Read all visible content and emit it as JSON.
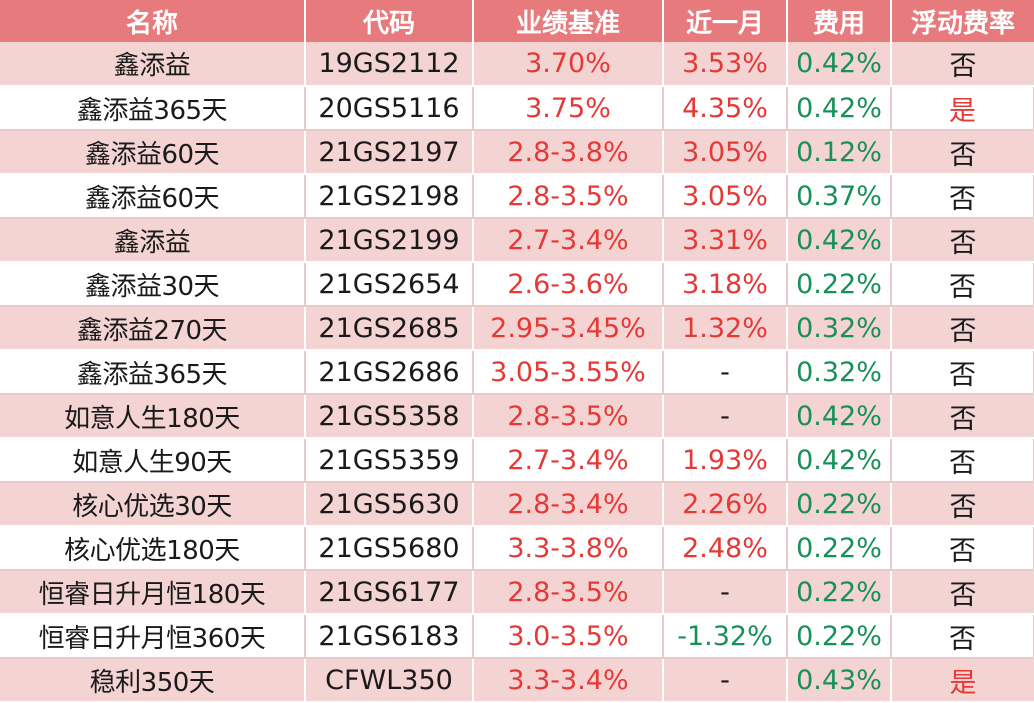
{
  "colors": {
    "header_bg": "#e77a7c",
    "row_alt": "#f4d3d3",
    "red": "#e53935",
    "green": "#17915a"
  },
  "headers": [
    "名称",
    "代码",
    "业绩基准",
    "近一月",
    "费用",
    "浮动费率"
  ],
  "rows": [
    {
      "name": "鑫添益",
      "code": "19GS2112",
      "benchmark": "3.70%",
      "month": "3.53%",
      "fee": "0.42%",
      "floating": "否"
    },
    {
      "name": "鑫添益365天",
      "code": "20GS5116",
      "benchmark": "3.75%",
      "month": "4.35%",
      "fee": "0.42%",
      "floating": "是"
    },
    {
      "name": "鑫添益60天",
      "code": "21GS2197",
      "benchmark": "2.8-3.8%",
      "month": "3.05%",
      "fee": "0.12%",
      "floating": "否"
    },
    {
      "name": "鑫添益60天",
      "code": "21GS2198",
      "benchmark": "2.8-3.5%",
      "month": "3.05%",
      "fee": "0.37%",
      "floating": "否"
    },
    {
      "name": "鑫添益",
      "code": "21GS2199",
      "benchmark": "2.7-3.4%",
      "month": "3.31%",
      "fee": "0.42%",
      "floating": "否"
    },
    {
      "name": "鑫添益30天",
      "code": "21GS2654",
      "benchmark": "2.6-3.6%",
      "month": "3.18%",
      "fee": "0.22%",
      "floating": "否"
    },
    {
      "name": "鑫添益270天",
      "code": "21GS2685",
      "benchmark": "2.95-3.45%",
      "month": "1.32%",
      "fee": "0.32%",
      "floating": "否"
    },
    {
      "name": "鑫添益365天",
      "code": "21GS2686",
      "benchmark": "3.05-3.55%",
      "month": "-",
      "fee": "0.32%",
      "floating": "否"
    },
    {
      "name": "如意人生180天",
      "code": "21GS5358",
      "benchmark": "2.8-3.5%",
      "month": "-",
      "fee": "0.42%",
      "floating": "否"
    },
    {
      "name": "如意人生90天",
      "code": "21GS5359",
      "benchmark": "2.7-3.4%",
      "month": "1.93%",
      "fee": "0.42%",
      "floating": "否"
    },
    {
      "name": "核心优选30天",
      "code": "21GS5630",
      "benchmark": "2.8-3.4%",
      "month": "2.26%",
      "fee": "0.22%",
      "floating": "否"
    },
    {
      "name": "核心优选180天",
      "code": "21GS5680",
      "benchmark": "3.3-3.8%",
      "month": "2.48%",
      "fee": "0.22%",
      "floating": "否"
    },
    {
      "name": "恒睿日升月恒180天",
      "code": "21GS6177",
      "benchmark": "2.8-3.5%",
      "month": "-",
      "fee": "0.22%",
      "floating": "否"
    },
    {
      "name": "恒睿日升月恒360天",
      "code": "21GS6183",
      "benchmark": "3.0-3.5%",
      "month": "-1.32%",
      "fee": "0.22%",
      "floating": "否"
    },
    {
      "name": "稳利350天",
      "code": "CFWL350",
      "benchmark": "3.3-3.4%",
      "month": "-",
      "fee": "0.43%",
      "floating": "是"
    }
  ]
}
